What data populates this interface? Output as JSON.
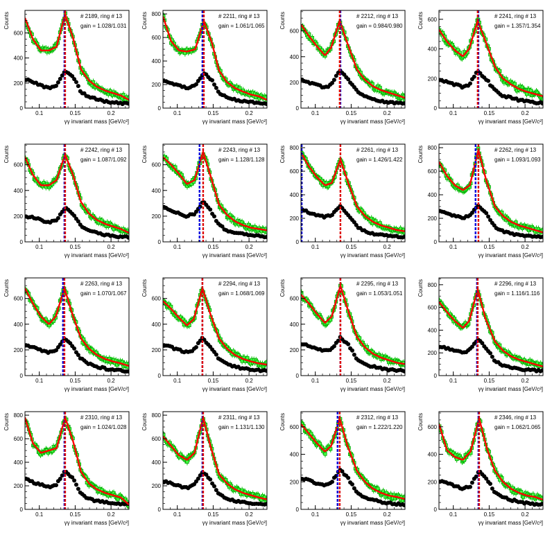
{
  "layout": {
    "columns": 4,
    "rows": 4
  },
  "chart_data": [
    {
      "type": "scatter",
      "annotation_run": "# 2189, ring # 13",
      "annotation_gain": "gain = 1.028/1.031",
      "xlabel": "γγ invariant mass [GeV/c²]",
      "ylabel": "Counts",
      "xlim": [
        0.08,
        0.225
      ],
      "ylim": [
        0,
        780
      ],
      "yticks": [
        0,
        200,
        400,
        600
      ],
      "xticks": [
        0.1,
        0.15,
        0.2
      ],
      "xticklabels": [
        "0.1",
        "0.15",
        "0.2"
      ],
      "bg": [
        230,
        210,
        180,
        160,
        185,
        300,
        250,
        130,
        90,
        70,
        55,
        45,
        40,
        35
      ],
      "tot": [
        720,
        550,
        460,
        460,
        490,
        750,
        560,
        310,
        220,
        170,
        140,
        120,
        100,
        65
      ],
      "fit_peak": 0.136,
      "ref_peak": 0.135
    },
    {
      "type": "scatter",
      "annotation_run": "# 2211, ring # 13",
      "annotation_gain": "gain = 1.061/1.065",
      "xlabel": "γγ invariant mass [GeV/c²]",
      "ylabel": "Counts",
      "xlim": [
        0.08,
        0.225
      ],
      "ylim": [
        0,
        830
      ],
      "yticks": [
        0,
        200,
        400,
        600,
        800
      ],
      "xticks": [
        0.1,
        0.15,
        0.2
      ],
      "xticklabels": [
        "0.1",
        "0.15",
        "0.2"
      ],
      "bg": [
        240,
        210,
        190,
        170,
        190,
        300,
        240,
        130,
        90,
        70,
        60,
        50,
        45,
        35
      ],
      "tot": [
        780,
        570,
        490,
        480,
        500,
        740,
        560,
        320,
        220,
        170,
        140,
        115,
        100,
        70
      ],
      "fit_peak": 0.137,
      "ref_peak": 0.135
    },
    {
      "type": "scatter",
      "annotation_run": "# 2212, ring # 13",
      "annotation_gain": "gain = 0.984/0.980",
      "xlabel": "γγ invariant mass [GeV/c²]",
      "ylabel": "Counts",
      "xlim": [
        0.08,
        0.225
      ],
      "ylim": [
        0,
        760
      ],
      "yticks": [
        0,
        200,
        400,
        600
      ],
      "xticks": [
        0.1,
        0.15,
        0.2
      ],
      "xticklabels": [
        "0.1",
        "0.15",
        "0.2"
      ],
      "bg": [
        220,
        200,
        180,
        160,
        180,
        290,
        230,
        130,
        90,
        70,
        55,
        45,
        40,
        35
      ],
      "tot": [
        650,
        560,
        480,
        410,
        470,
        680,
        500,
        300,
        220,
        170,
        140,
        120,
        100,
        80
      ],
      "fit_peak": 0.134,
      "ref_peak": 0.135
    },
    {
      "type": "scatter",
      "annotation_run": "# 2241, ring # 13",
      "annotation_gain": "gain = 1.357/1.354",
      "xlabel": "γγ invariant mass [GeV/c²]",
      "ylabel": "Counts",
      "xlim": [
        0.08,
        0.225
      ],
      "ylim": [
        0,
        660
      ],
      "yticks": [
        0,
        200,
        400,
        600
      ],
      "xticks": [
        0.1,
        0.15,
        0.2
      ],
      "xticklabels": [
        "0.1",
        "0.15",
        "0.2"
      ],
      "bg": [
        190,
        180,
        160,
        140,
        160,
        250,
        200,
        120,
        85,
        70,
        55,
        45,
        40,
        35
      ],
      "tot": [
        530,
        450,
        390,
        350,
        400,
        590,
        450,
        280,
        200,
        160,
        130,
        110,
        95,
        80
      ],
      "fit_peak": 0.134,
      "ref_peak": 0.135
    },
    {
      "type": "scatter",
      "annotation_run": "# 2242, ring # 13",
      "annotation_gain": "gain = 1.087/1.092",
      "xlabel": "γγ invariant mass [GeV/c²]",
      "ylabel": "Counts",
      "xlim": [
        0.08,
        0.225
      ],
      "ylim": [
        0,
        760
      ],
      "yticks": [
        0,
        200,
        400,
        600
      ],
      "xticks": [
        0.1,
        0.15,
        0.2
      ],
      "xticklabels": [
        "0.1",
        "0.15",
        "0.2"
      ],
      "bg": [
        200,
        190,
        170,
        150,
        170,
        270,
        220,
        120,
        85,
        70,
        55,
        45,
        40,
        35
      ],
      "tot": [
        660,
        520,
        440,
        440,
        480,
        680,
        520,
        310,
        220,
        170,
        140,
        120,
        100,
        70
      ],
      "fit_peak": 0.136,
      "ref_peak": 0.135
    },
    {
      "type": "scatter",
      "annotation_run": "# 2243, ring # 13",
      "annotation_gain": "gain = 1.128/1.128",
      "xlabel": "γγ invariant mass [GeV/c²]",
      "ylabel": "Counts",
      "xlim": [
        0.08,
        0.225
      ],
      "ylim": [
        0,
        760
      ],
      "yticks": [
        0,
        200,
        400,
        600
      ],
      "xticks": [
        0.1,
        0.15,
        0.2
      ],
      "xticklabels": [
        "0.1",
        "0.15",
        "0.2"
      ],
      "bg": [
        270,
        240,
        220,
        200,
        220,
        310,
        240,
        130,
        90,
        70,
        60,
        50,
        45,
        40
      ],
      "tot": [
        660,
        600,
        530,
        450,
        480,
        700,
        500,
        290,
        210,
        160,
        130,
        110,
        100,
        90
      ],
      "fit_peak": 0.136,
      "ref_peak": 0.131
    },
    {
      "type": "scatter",
      "annotation_run": "# 2261, ring # 13",
      "annotation_gain": "gain = 1.426/1.422",
      "xlabel": "γγ invariant mass [GeV/c²]",
      "ylabel": "Counts",
      "xlim": [
        0.08,
        0.225
      ],
      "ylim": [
        0,
        830
      ],
      "yticks": [
        0,
        200,
        400,
        600,
        800
      ],
      "xticks": [
        0.1,
        0.15,
        0.2
      ],
      "xticklabels": [
        "0.1",
        "0.15",
        "0.2"
      ],
      "bg": [
        280,
        250,
        230,
        210,
        230,
        300,
        230,
        130,
        90,
        70,
        60,
        50,
        45,
        40
      ],
      "tot": [
        760,
        640,
        550,
        480,
        500,
        700,
        500,
        300,
        220,
        170,
        140,
        120,
        100,
        90
      ],
      "fit_peak": 0.135,
      "ref_peak": 0.081
    },
    {
      "type": "scatter",
      "annotation_run": "# 2262, ring # 13",
      "annotation_gain": "gain = 1.093/1.093",
      "xlabel": "γγ invariant mass [GeV/c²]",
      "ylabel": "Counts",
      "xlim": [
        0.08,
        0.225
      ],
      "ylim": [
        0,
        830
      ],
      "yticks": [
        0,
        200,
        400,
        600,
        800
      ],
      "xticks": [
        0.1,
        0.15,
        0.2
      ],
      "xticklabels": [
        "0.1",
        "0.15",
        "0.2"
      ],
      "bg": [
        270,
        240,
        220,
        200,
        230,
        310,
        240,
        130,
        90,
        70,
        60,
        50,
        45,
        40
      ],
      "tot": [
        680,
        560,
        480,
        440,
        480,
        780,
        520,
        300,
        220,
        170,
        140,
        120,
        100,
        80
      ],
      "fit_peak": 0.135,
      "ref_peak": 0.131
    },
    {
      "type": "scatter",
      "annotation_run": "# 2263, ring # 13",
      "annotation_gain": "gain = 1.070/1.067",
      "xlabel": "γγ invariant mass [GeV/c²]",
      "ylabel": "Counts",
      "xlim": [
        0.08,
        0.225
      ],
      "ylim": [
        0,
        760
      ],
      "yticks": [
        0,
        200,
        400,
        600
      ],
      "xticks": [
        0.1,
        0.15,
        0.2
      ],
      "xticklabels": [
        "0.1",
        "0.15",
        "0.2"
      ],
      "bg": [
        240,
        220,
        200,
        180,
        200,
        290,
        230,
        130,
        90,
        70,
        55,
        45,
        40,
        35
      ],
      "tot": [
        680,
        560,
        460,
        400,
        460,
        680,
        480,
        290,
        210,
        160,
        130,
        110,
        95,
        75
      ],
      "fit_peak": 0.135,
      "ref_peak": 0.133
    },
    {
      "type": "scatter",
      "annotation_run": "# 2294, ring # 13",
      "annotation_gain": "gain = 1.068/1.069",
      "xlabel": "γγ invariant mass [GeV/c²]",
      "ylabel": "Counts",
      "xlim": [
        0.08,
        0.225
      ],
      "ylim": [
        0,
        760
      ],
      "yticks": [
        0,
        200,
        400,
        600
      ],
      "xticks": [
        0.1,
        0.15,
        0.2
      ],
      "xticklabels": [
        "0.1",
        "0.15",
        "0.2"
      ],
      "bg": [
        240,
        220,
        200,
        180,
        200,
        290,
        230,
        130,
        90,
        70,
        55,
        45,
        40,
        35
      ],
      "tot": [
        580,
        520,
        450,
        390,
        440,
        680,
        480,
        290,
        210,
        160,
        130,
        110,
        95,
        85
      ],
      "fit_peak": 0.135,
      "ref_peak": 0.135
    },
    {
      "type": "scatter",
      "annotation_run": "# 2295, ring # 13",
      "annotation_gain": "gain = 1.053/1.051",
      "xlabel": "γγ invariant mass [GeV/c²]",
      "ylabel": "Counts",
      "xlim": [
        0.08,
        0.225
      ],
      "ylim": [
        0,
        760
      ],
      "yticks": [
        0,
        200,
        400,
        600
      ],
      "xticks": [
        0.1,
        0.15,
        0.2
      ],
      "xticklabels": [
        "0.1",
        "0.15",
        "0.2"
      ],
      "bg": [
        250,
        230,
        210,
        190,
        210,
        300,
        240,
        130,
        90,
        70,
        55,
        45,
        40,
        35
      ],
      "tot": [
        630,
        560,
        480,
        410,
        460,
        700,
        500,
        300,
        220,
        170,
        140,
        120,
        100,
        90
      ],
      "fit_peak": 0.135,
      "ref_peak": 0.135
    },
    {
      "type": "scatter",
      "annotation_run": "# 2296, ring # 13",
      "annotation_gain": "gain = 1.116/1.116",
      "xlabel": "γγ invariant mass [GeV/c²]",
      "ylabel": "Counts",
      "xlim": [
        0.08,
        0.225
      ],
      "ylim": [
        0,
        860
      ],
      "yticks": [
        0,
        200,
        400,
        600,
        800
      ],
      "xticks": [
        0.1,
        0.15,
        0.2
      ],
      "xticklabels": [
        "0.1",
        "0.15",
        "0.2"
      ],
      "bg": [
        260,
        240,
        220,
        200,
        220,
        320,
        250,
        130,
        90,
        70,
        60,
        50,
        45,
        40
      ],
      "tot": [
        650,
        560,
        480,
        420,
        480,
        760,
        500,
        300,
        220,
        170,
        140,
        120,
        100,
        80
      ],
      "fit_peak": 0.134,
      "ref_peak": 0.133
    },
    {
      "type": "scatter",
      "annotation_run": "# 2310, ring # 13",
      "annotation_gain": "gain = 1.024/1.028",
      "xlabel": "γγ invariant mass [GeV/c²]",
      "ylabel": "Counts",
      "xlim": [
        0.08,
        0.225
      ],
      "ylim": [
        0,
        830
      ],
      "yticks": [
        0,
        200,
        400,
        600,
        800
      ],
      "xticks": [
        0.1,
        0.15,
        0.2
      ],
      "xticklabels": [
        "0.1",
        "0.15",
        "0.2"
      ],
      "bg": [
        260,
        230,
        210,
        190,
        210,
        330,
        260,
        130,
        90,
        70,
        60,
        50,
        45,
        40
      ],
      "tot": [
        780,
        560,
        480,
        500,
        520,
        780,
        580,
        320,
        220,
        170,
        140,
        120,
        100,
        40
      ],
      "fit_peak": 0.136,
      "ref_peak": 0.135
    },
    {
      "type": "scatter",
      "annotation_run": "# 2311, ring # 13",
      "annotation_gain": "gain = 1.131/1.130",
      "xlabel": "γγ invariant mass [GeV/c²]",
      "ylabel": "Counts",
      "xlim": [
        0.08,
        0.225
      ],
      "ylim": [
        0,
        830
      ],
      "yticks": [
        0,
        200,
        400,
        600,
        800
      ],
      "xticks": [
        0.1,
        0.15,
        0.2
      ],
      "xticklabels": [
        "0.1",
        "0.15",
        "0.2"
      ],
      "bg": [
        240,
        220,
        200,
        180,
        210,
        320,
        240,
        130,
        90,
        70,
        60,
        50,
        45,
        40
      ],
      "tot": [
        620,
        540,
        460,
        420,
        480,
        780,
        520,
        300,
        220,
        170,
        140,
        120,
        100,
        85
      ],
      "fit_peak": 0.136,
      "ref_peak": 0.135
    },
    {
      "type": "scatter",
      "annotation_run": "# 2312, ring # 13",
      "annotation_gain": "gain = 1.222/1.220",
      "xlabel": "γγ invariant mass [GeV/c²]",
      "ylabel": "Counts",
      "xlim": [
        0.08,
        0.225
      ],
      "ylim": [
        0,
        710
      ],
      "yticks": [
        0,
        200,
        400,
        600
      ],
      "xticks": [
        0.1,
        0.15,
        0.2
      ],
      "xticklabels": [
        "0.1",
        "0.15",
        "0.2"
      ],
      "bg": [
        230,
        210,
        190,
        170,
        190,
        290,
        230,
        120,
        85,
        70,
        55,
        45,
        40,
        35
      ],
      "tot": [
        620,
        550,
        480,
        420,
        460,
        660,
        460,
        280,
        200,
        150,
        120,
        100,
        90,
        75
      ],
      "fit_peak": 0.134,
      "ref_peak": 0.131
    },
    {
      "type": "scatter",
      "annotation_run": "# 2346, ring # 13",
      "annotation_gain": "gain = 1.062/1.065",
      "xlabel": "γγ invariant mass [GeV/c²]",
      "ylabel": "Counts",
      "xlim": [
        0.08,
        0.225
      ],
      "ylim": [
        0,
        710
      ],
      "yticks": [
        0,
        200,
        400,
        600
      ],
      "xticks": [
        0.1,
        0.15,
        0.2
      ],
      "xticklabels": [
        "0.1",
        "0.15",
        "0.2"
      ],
      "bg": [
        210,
        190,
        170,
        150,
        170,
        280,
        220,
        120,
        85,
        70,
        55,
        45,
        40,
        35
      ],
      "tot": [
        620,
        430,
        380,
        360,
        420,
        660,
        440,
        280,
        200,
        150,
        120,
        100,
        90,
        70
      ],
      "fit_peak": 0.136,
      "ref_peak": 0.135
    }
  ]
}
